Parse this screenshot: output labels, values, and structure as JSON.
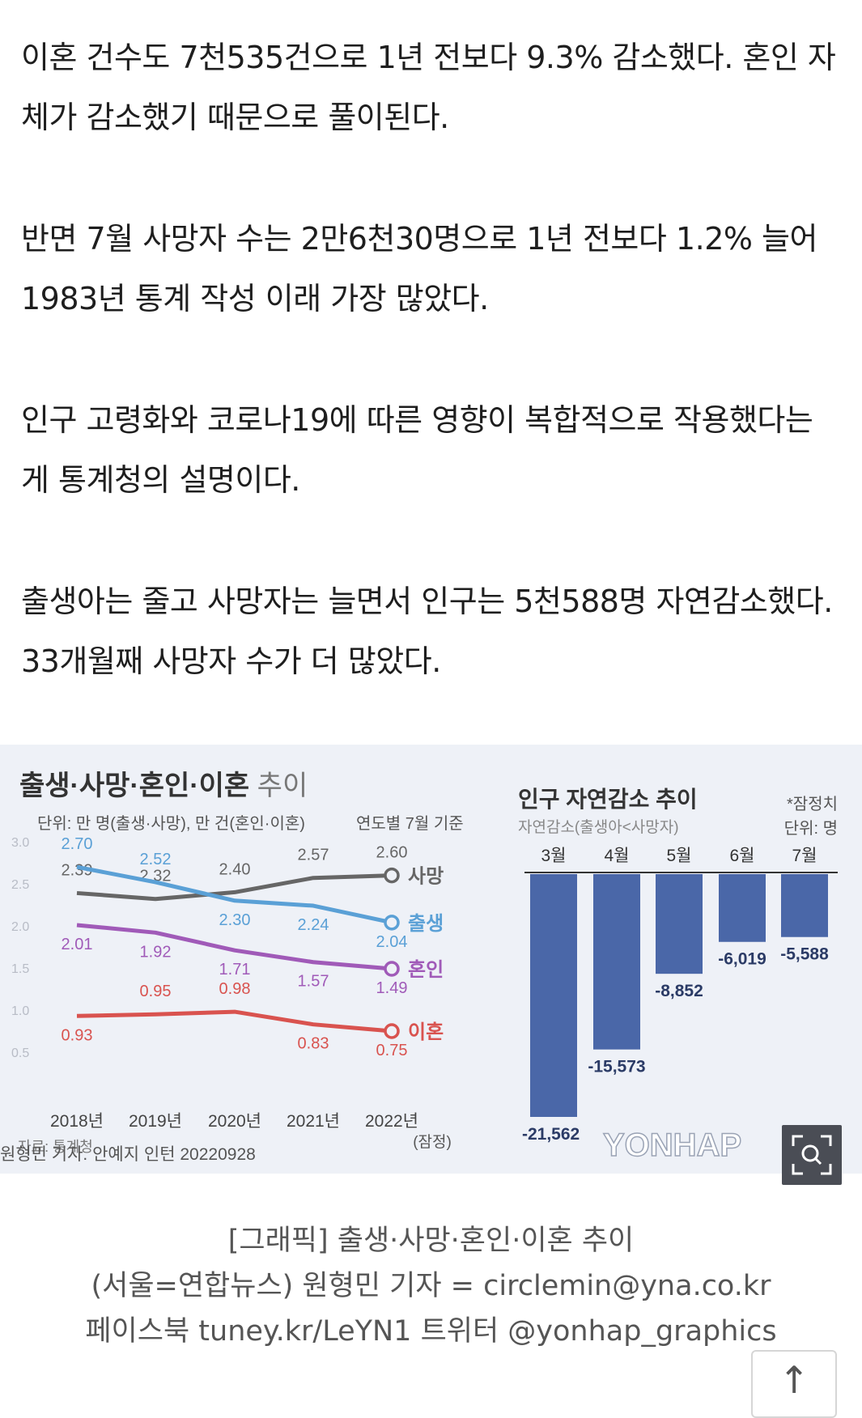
{
  "article": {
    "paragraphs": [
      "이혼 건수도 7천535건으로 1년 전보다 9.3% 감소했다. 혼인 자체가 감소했기 때문으로 풀이된다.",
      "반면 7월 사망자 수는 2만6천30명으로 1년 전보다 1.2% 늘어 1983년 통계 작성 이래 가장 많았다.",
      "인구 고령화와 코로나19에 따른 영향이 복합적으로 작용했다는 게 통계청의 설명이다.",
      "출생아는 줄고 사망자는 늘면서 인구는 5천588명 자연감소했다. 33개월째 사망자 수가 더 많았다."
    ]
  },
  "graphic": {
    "left_title_main": "출생·사망·혼인·이혼",
    "left_title_suffix": "추이",
    "left_unit": "단위: 만 명(출생·사망), 만 건(혼인·이혼)",
    "left_basis": "연도별 7월 기준",
    "source": "자료: 통계청",
    "credit": "원형민 기자. 안예지 인턴 20220928",
    "watermark": "YONHAP",
    "right_title": "인구 자연감소 추이",
    "right_subtitle": "자연감소(출생아<사망자)",
    "right_note": "*잠정치",
    "right_unit": "단위: 명",
    "colors": {
      "death": "#666666",
      "birth": "#5aa0d6",
      "marriage": "#a05ab8",
      "divorce": "#d9534f",
      "bar": "#4a67a8",
      "title": "#333333"
    }
  },
  "chart_data": [
    {
      "type": "line",
      "title": "출생·사망·혼인·이혼 추이",
      "x": [
        "2018년",
        "2019년",
        "2020년",
        "2021년",
        "2022년"
      ],
      "x_note": "(잠정)",
      "ylim": [
        0.5,
        3.0
      ],
      "yticks": [
        "3.0",
        "2.5",
        "2.0",
        "1.5",
        "1.0",
        "0.5"
      ],
      "ytick_values": [
        3.0,
        2.5,
        2.0,
        1.5,
        1.0,
        0.5
      ],
      "series": [
        {
          "name": "사망",
          "values": [
            2.39,
            2.32,
            2.4,
            2.57,
            2.6
          ],
          "labels": [
            "2.39",
            "2.32",
            "2.40",
            "2.57",
            "2.60"
          ],
          "color": "#666666"
        },
        {
          "name": "출생",
          "values": [
            2.7,
            2.52,
            2.3,
            2.24,
            2.04
          ],
          "labels": [
            "2.70",
            "2.52",
            "2.30",
            "2.24",
            "2.04"
          ],
          "color": "#5aa0d6"
        },
        {
          "name": "혼인",
          "values": [
            2.01,
            1.92,
            1.71,
            1.57,
            1.49
          ],
          "labels": [
            "2.01",
            "1.92",
            "1.71",
            "1.57",
            "1.49"
          ],
          "color": "#a05ab8"
        },
        {
          "name": "이혼",
          "values": [
            0.93,
            0.95,
            0.98,
            0.83,
            0.75
          ],
          "labels": [
            "0.93",
            "0.95",
            "0.98",
            "0.83",
            "0.75"
          ],
          "color": "#d9534f"
        }
      ]
    },
    {
      "type": "bar",
      "title": "인구 자연감소 추이",
      "categories": [
        "3월",
        "4월",
        "5월",
        "6월",
        "7월"
      ],
      "values": [
        -21562,
        -15573,
        -8852,
        -6019,
        -5588
      ],
      "labels": [
        "-21,562",
        "-15,573",
        "-8,852",
        "-6,019",
        "-5,588"
      ]
    }
  ],
  "caption": {
    "line1": "[그래픽] 출생·사망·혼인·이혼 추이",
    "line2": "(서울=연합뉴스) 원형민 기자 = circlemin@yna.co.kr",
    "line3": "페이스북 tuney.kr/LeYN1 트위터 @yonhap_graphics"
  },
  "controls": {
    "zoom_icon": "zoom-icon",
    "top_icon": "arrow-up-icon",
    "top_glyph": "↑"
  }
}
